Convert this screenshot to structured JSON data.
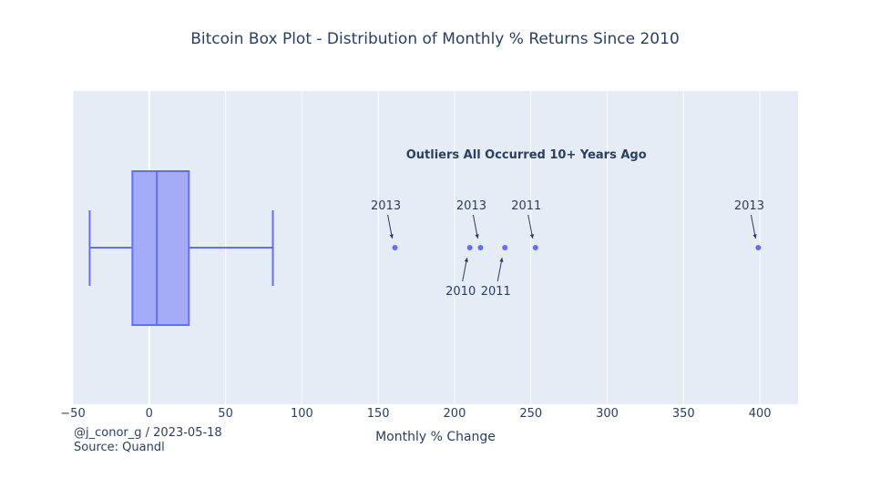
{
  "chart_data": {
    "type": "box",
    "title": "Bitcoin Box Plot - Distribution of Monthly % Returns Since 2010",
    "xlabel": "Monthly % Change",
    "xlim": [
      -50,
      425
    ],
    "xticks": [
      -50,
      0,
      50,
      100,
      150,
      200,
      250,
      300,
      350,
      400
    ],
    "box": {
      "lower_whisker": -39,
      "q1": -11,
      "median": 5,
      "q3": 26,
      "upper_whisker": 81
    },
    "outliers": [
      161,
      210,
      217,
      233,
      253,
      399
    ],
    "annotation_title": "Outliers All Occurred 10+ Years Ago",
    "outlier_labels": [
      {
        "x": 161,
        "label": "2013",
        "side": "above"
      },
      {
        "x": 210,
        "label": "2010",
        "side": "below"
      },
      {
        "x": 217,
        "label": "2013",
        "side": "above"
      },
      {
        "x": 233,
        "label": "2011",
        "side": "below"
      },
      {
        "x": 253,
        "label": "2011",
        "side": "above"
      },
      {
        "x": 399,
        "label": "2013",
        "side": "above"
      }
    ],
    "colors": {
      "plot_bg": "#e5ecf6",
      "box_fill": "#a4acf8",
      "box_line": "#636efa",
      "grid": "#ffffff",
      "text": "#2a3f5f"
    }
  },
  "footer": {
    "credit_line1": "@j_conor_g / 2023-05-18",
    "credit_line2": "Source: Quandl"
  }
}
